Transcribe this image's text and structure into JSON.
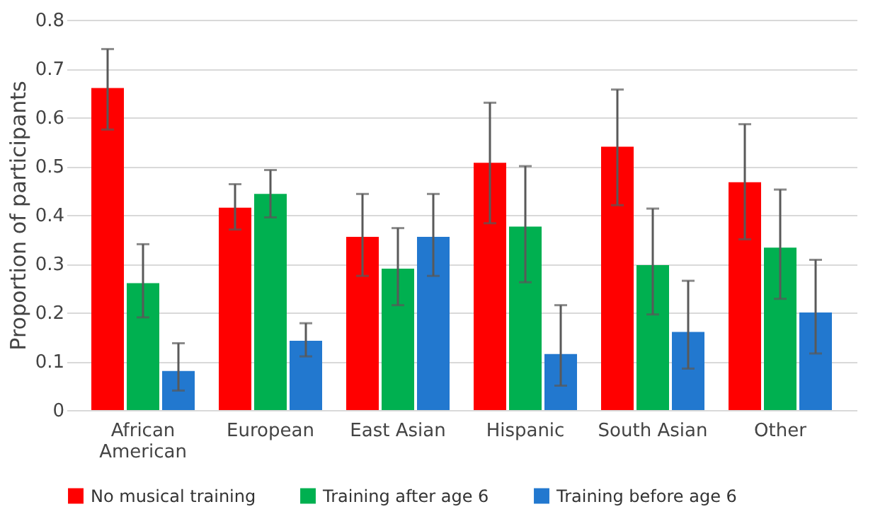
{
  "chart_data": {
    "type": "bar",
    "ylabel": "Proportion of participants",
    "categories": [
      "African American",
      "European",
      "East Asian",
      "Hispanic",
      "South Asian",
      "Other"
    ],
    "series": [
      {
        "name": "No musical training",
        "color": "#ff0000",
        "values": [
          0.66,
          0.415,
          0.355,
          0.507,
          0.54,
          0.467
        ],
        "errors": [
          [
            0.575,
            0.74
          ],
          [
            0.37,
            0.463
          ],
          [
            0.275,
            0.443
          ],
          [
            0.383,
            0.63
          ],
          [
            0.42,
            0.657
          ],
          [
            0.35,
            0.586
          ]
        ]
      },
      {
        "name": "Training after age 6",
        "color": "#00b050",
        "values": [
          0.26,
          0.443,
          0.29,
          0.376,
          0.297,
          0.333
        ],
        "errors": [
          [
            0.19,
            0.34
          ],
          [
            0.395,
            0.492
          ],
          [
            0.215,
            0.373
          ],
          [
            0.262,
            0.5
          ],
          [
            0.196,
            0.413
          ],
          [
            0.228,
            0.452
          ]
        ]
      },
      {
        "name": "Training before age 6",
        "color": "#2278cf",
        "values": [
          0.08,
          0.142,
          0.355,
          0.115,
          0.16,
          0.2
        ],
        "errors": [
          [
            0.04,
            0.137
          ],
          [
            0.11,
            0.178
          ],
          [
            0.275,
            0.443
          ],
          [
            0.05,
            0.215
          ],
          [
            0.085,
            0.265
          ],
          [
            0.116,
            0.308
          ]
        ]
      }
    ],
    "ylim": [
      0,
      0.8
    ],
    "yticks": [
      0,
      0.1,
      0.2,
      0.3,
      0.4,
      0.5,
      0.6,
      0.7,
      0.8
    ],
    "grid": "y",
    "legend": "bottom"
  }
}
